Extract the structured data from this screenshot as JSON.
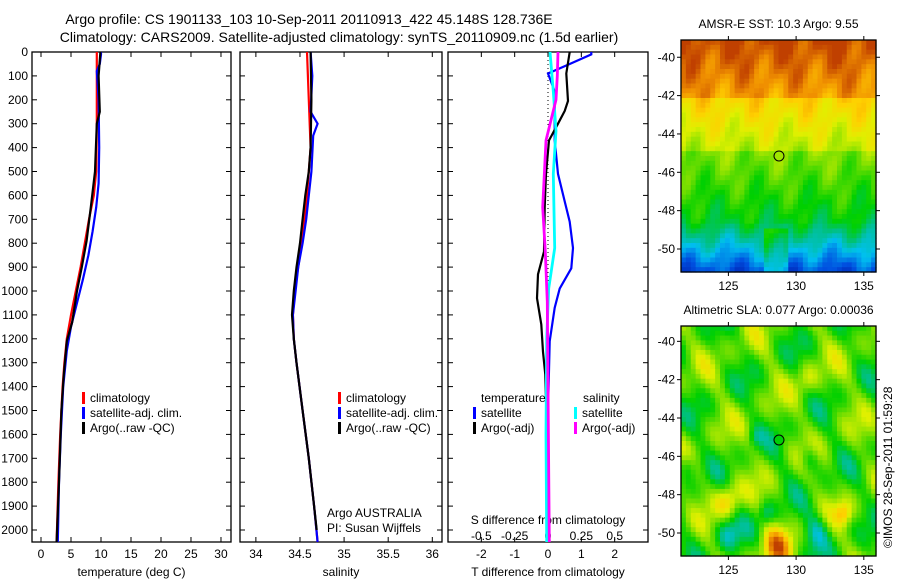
{
  "header": {
    "title_line1": "Argo profile: CS 1901133_103 10-Sep-2011 20110913_422 45.148S 128.736E",
    "title_line2": "Climatology: CARS2009. Satellite-adjusted climatology: synTS_20110909.nc (1.5d earlier)"
  },
  "annotation": {
    "line1": "Argo AUSTRALIA",
    "line2": "PI: Susan Wijffels"
  },
  "credit": "©IMOS 28-Sep-2011 01:59:28",
  "colors": {
    "climatology": "#ff0000",
    "satellite": "#0000ff",
    "argo": "#000000",
    "sal_satellite": "#00ffff",
    "sal_argo": "#ff00ff"
  },
  "chart_data": [
    {
      "id": "temperature",
      "type": "line",
      "xlabel": "temperature (deg C)",
      "ylabel": "",
      "xlim": [
        -1.5,
        31.67
      ],
      "ylim": [
        2050,
        0
      ],
      "xticks": [
        0,
        5,
        10,
        15,
        20,
        25,
        30
      ],
      "yticks": [
        0,
        100,
        200,
        300,
        400,
        500,
        600,
        700,
        800,
        900,
        1000,
        1100,
        1200,
        1300,
        1400,
        1500,
        1600,
        1700,
        1800,
        1900,
        2000
      ],
      "legend": [
        "climatology",
        "satellite-adj. clim.",
        "Argo(..raw -QC)"
      ],
      "series": [
        {
          "name": "climatology",
          "color": "#ff0000",
          "depth": [
            0,
            100,
            300,
            500,
            600,
            700,
            800,
            900,
            1000,
            1100,
            1200,
            1300,
            1400,
            1600,
            1800,
            2050
          ],
          "value": [
            9.3,
            9.3,
            9.3,
            9.2,
            8.8,
            8.0,
            7.3,
            6.6,
            5.8,
            5.0,
            4.3,
            3.9,
            3.6,
            3.2,
            2.9,
            2.6
          ]
        },
        {
          "name": "satellite-adj. clim.",
          "color": "#0000ff",
          "depth": [
            0,
            10,
            50,
            80,
            200,
            400,
            550,
            650,
            750,
            850,
            950,
            1050,
            1150,
            1250,
            1400,
            1600,
            1800,
            2050
          ],
          "value": [
            10.0,
            10.0,
            9.8,
            9.3,
            9.6,
            9.7,
            9.6,
            9.2,
            8.6,
            7.9,
            7.0,
            6.0,
            5.0,
            4.3,
            3.7,
            3.3,
            3.0,
            2.8
          ]
        },
        {
          "name": "Argo(..raw -QC)",
          "color": "#000000",
          "depth": [
            0,
            100,
            250,
            300,
            500,
            650,
            790,
            900,
            1000,
            1130,
            1210,
            1350,
            1500,
            1800,
            2050
          ],
          "value": [
            9.9,
            9.6,
            9.8,
            9.3,
            9.0,
            8.3,
            7.6,
            6.8,
            6.0,
            5.2,
            4.3,
            3.8,
            3.4,
            3.0,
            2.6
          ]
        }
      ]
    },
    {
      "id": "salinity",
      "type": "line",
      "xlabel": "salinity",
      "ylabel": "",
      "xlim": [
        33.82,
        36.11
      ],
      "ylim": [
        2050,
        0
      ],
      "xticks": [
        34,
        34.5,
        35,
        35.5,
        36
      ],
      "legend": [
        "climatology",
        "satellite-adj. clim.",
        "Argo(..raw -QC)"
      ],
      "series": [
        {
          "name": "climatology",
          "color": "#ff0000",
          "depth": [
            0,
            200,
            400,
            500,
            600,
            700,
            800,
            900,
            1000,
            1100,
            1200,
            1300,
            1500,
            1700,
            1900,
            2050
          ],
          "value": [
            34.58,
            34.6,
            34.62,
            34.6,
            34.58,
            34.55,
            34.52,
            34.48,
            34.44,
            34.42,
            34.43,
            34.46,
            34.53,
            34.6,
            34.66,
            34.7
          ]
        },
        {
          "name": "satellite-adj. clim.",
          "color": "#0000ff",
          "depth": [
            0,
            100,
            250,
            300,
            350,
            500,
            600,
            700,
            800,
            900,
            1000,
            1100,
            1200,
            1300,
            1500,
            1700,
            1900,
            2050
          ],
          "value": [
            34.62,
            34.64,
            34.62,
            34.7,
            34.65,
            34.63,
            34.6,
            34.57,
            34.53,
            34.48,
            34.45,
            34.42,
            34.43,
            34.46,
            34.53,
            34.6,
            34.66,
            34.7
          ]
        },
        {
          "name": "Argo(..raw -QC)",
          "color": "#000000",
          "depth": [
            0,
            200,
            400,
            500,
            600,
            700,
            800,
            900,
            1000,
            1100,
            1200,
            1300,
            1500,
            1700,
            1900,
            2000
          ],
          "value": [
            34.62,
            34.63,
            34.62,
            34.6,
            34.56,
            34.53,
            34.5,
            34.46,
            34.43,
            34.41,
            34.43,
            34.46,
            34.53,
            34.6,
            34.66,
            34.69
          ]
        }
      ]
    },
    {
      "id": "difference",
      "type": "line",
      "xlabel": "T difference from climatology",
      "xlabel_secondary": "S difference from climatology",
      "xlim": [
        -3,
        3
      ],
      "xlim_secondary": [
        -0.75,
        0.75
      ],
      "ylim": [
        2050,
        0
      ],
      "xticks": [
        -2,
        -1,
        0,
        1,
        2
      ],
      "xtick_labels": [
        "-2",
        "-1",
        "0",
        "1",
        "2"
      ],
      "xticks_secondary": [
        -0.5,
        -0.25,
        0,
        0.25,
        0.5
      ],
      "xtick_labels_secondary": [
        "-0.5",
        "-0.25",
        "0",
        "0.25",
        "0.5"
      ],
      "legend": {
        "temperature_title": "temperature",
        "salinity_title": "salinity",
        "t_satellite": "satellite",
        "t_argo": "Argo(-adj)",
        "s_satellite": "satellite",
        "s_argo": "Argo(-adj)"
      },
      "series": [
        {
          "name": "T satellite",
          "axis": "T",
          "color": "#0000ff",
          "depth": [
            0,
            10,
            50,
            90,
            165,
            370,
            510,
            625,
            710,
            820,
            905,
            990,
            1070,
            1210,
            1500,
            2050
          ],
          "value": [
            1.3,
            1.3,
            0.65,
            0.0,
            0.2,
            0.2,
            0.3,
            0.5,
            0.65,
            0.75,
            0.7,
            0.35,
            0.2,
            0.05,
            0.0,
            0.0
          ]
        },
        {
          "name": "T Argo(-adj)",
          "axis": "T",
          "color": "#000000",
          "depth": [
            0,
            90,
            205,
            247,
            300,
            370,
            510,
            650,
            835,
            930,
            1030,
            1140,
            1255,
            1350,
            1600,
            2050
          ],
          "value": [
            0.65,
            0.55,
            0.6,
            0.5,
            0.3,
            0.03,
            -0.06,
            -0.1,
            -0.12,
            -0.3,
            -0.33,
            -0.2,
            -0.15,
            -0.08,
            -0.03,
            -0.03
          ]
        },
        {
          "name": "S satellite",
          "axis": "S",
          "color": "#00ffff",
          "depth": [
            0,
            165,
            330,
            510,
            820,
            990,
            1200,
            1600,
            2050
          ],
          "value": [
            0.015,
            0.04,
            0.06,
            0.04,
            0.05,
            0.005,
            -0.01,
            -0.015,
            -0.01
          ]
        },
        {
          "name": "S Argo(-adj)",
          "axis": "S",
          "color": "#ff00ff",
          "depth": [
            0,
            100,
            200,
            370,
            650,
            835,
            1045,
            1400,
            2050
          ],
          "value": [
            0.075,
            0.07,
            0.06,
            -0.015,
            -0.04,
            -0.02,
            -0.005,
            0.0,
            0.01
          ]
        }
      ]
    },
    {
      "id": "sst-map",
      "type": "heatmap",
      "title": "AMSR-E SST: 10.3 Argo: 9.55",
      "xlim": [
        121.5,
        135.9
      ],
      "ylim": [
        -51.2,
        -39.1
      ],
      "xticks": [
        125,
        130,
        135
      ],
      "yticks": [
        -40,
        -42,
        -44,
        -46,
        -48,
        -50
      ],
      "marker": {
        "lon": 128.736,
        "lat": -45.148
      }
    },
    {
      "id": "sla-map",
      "type": "heatmap",
      "title": "Altimetric SLA: 0.077 Argo: 0.00036",
      "xlim": [
        121.5,
        135.9
      ],
      "ylim": [
        -51.2,
        -39.2
      ],
      "xticks": [
        125,
        130,
        135
      ],
      "yticks": [
        -40,
        -42,
        -44,
        -46,
        -48,
        -50
      ],
      "marker": {
        "lon": 128.736,
        "lat": -45.148
      }
    }
  ]
}
